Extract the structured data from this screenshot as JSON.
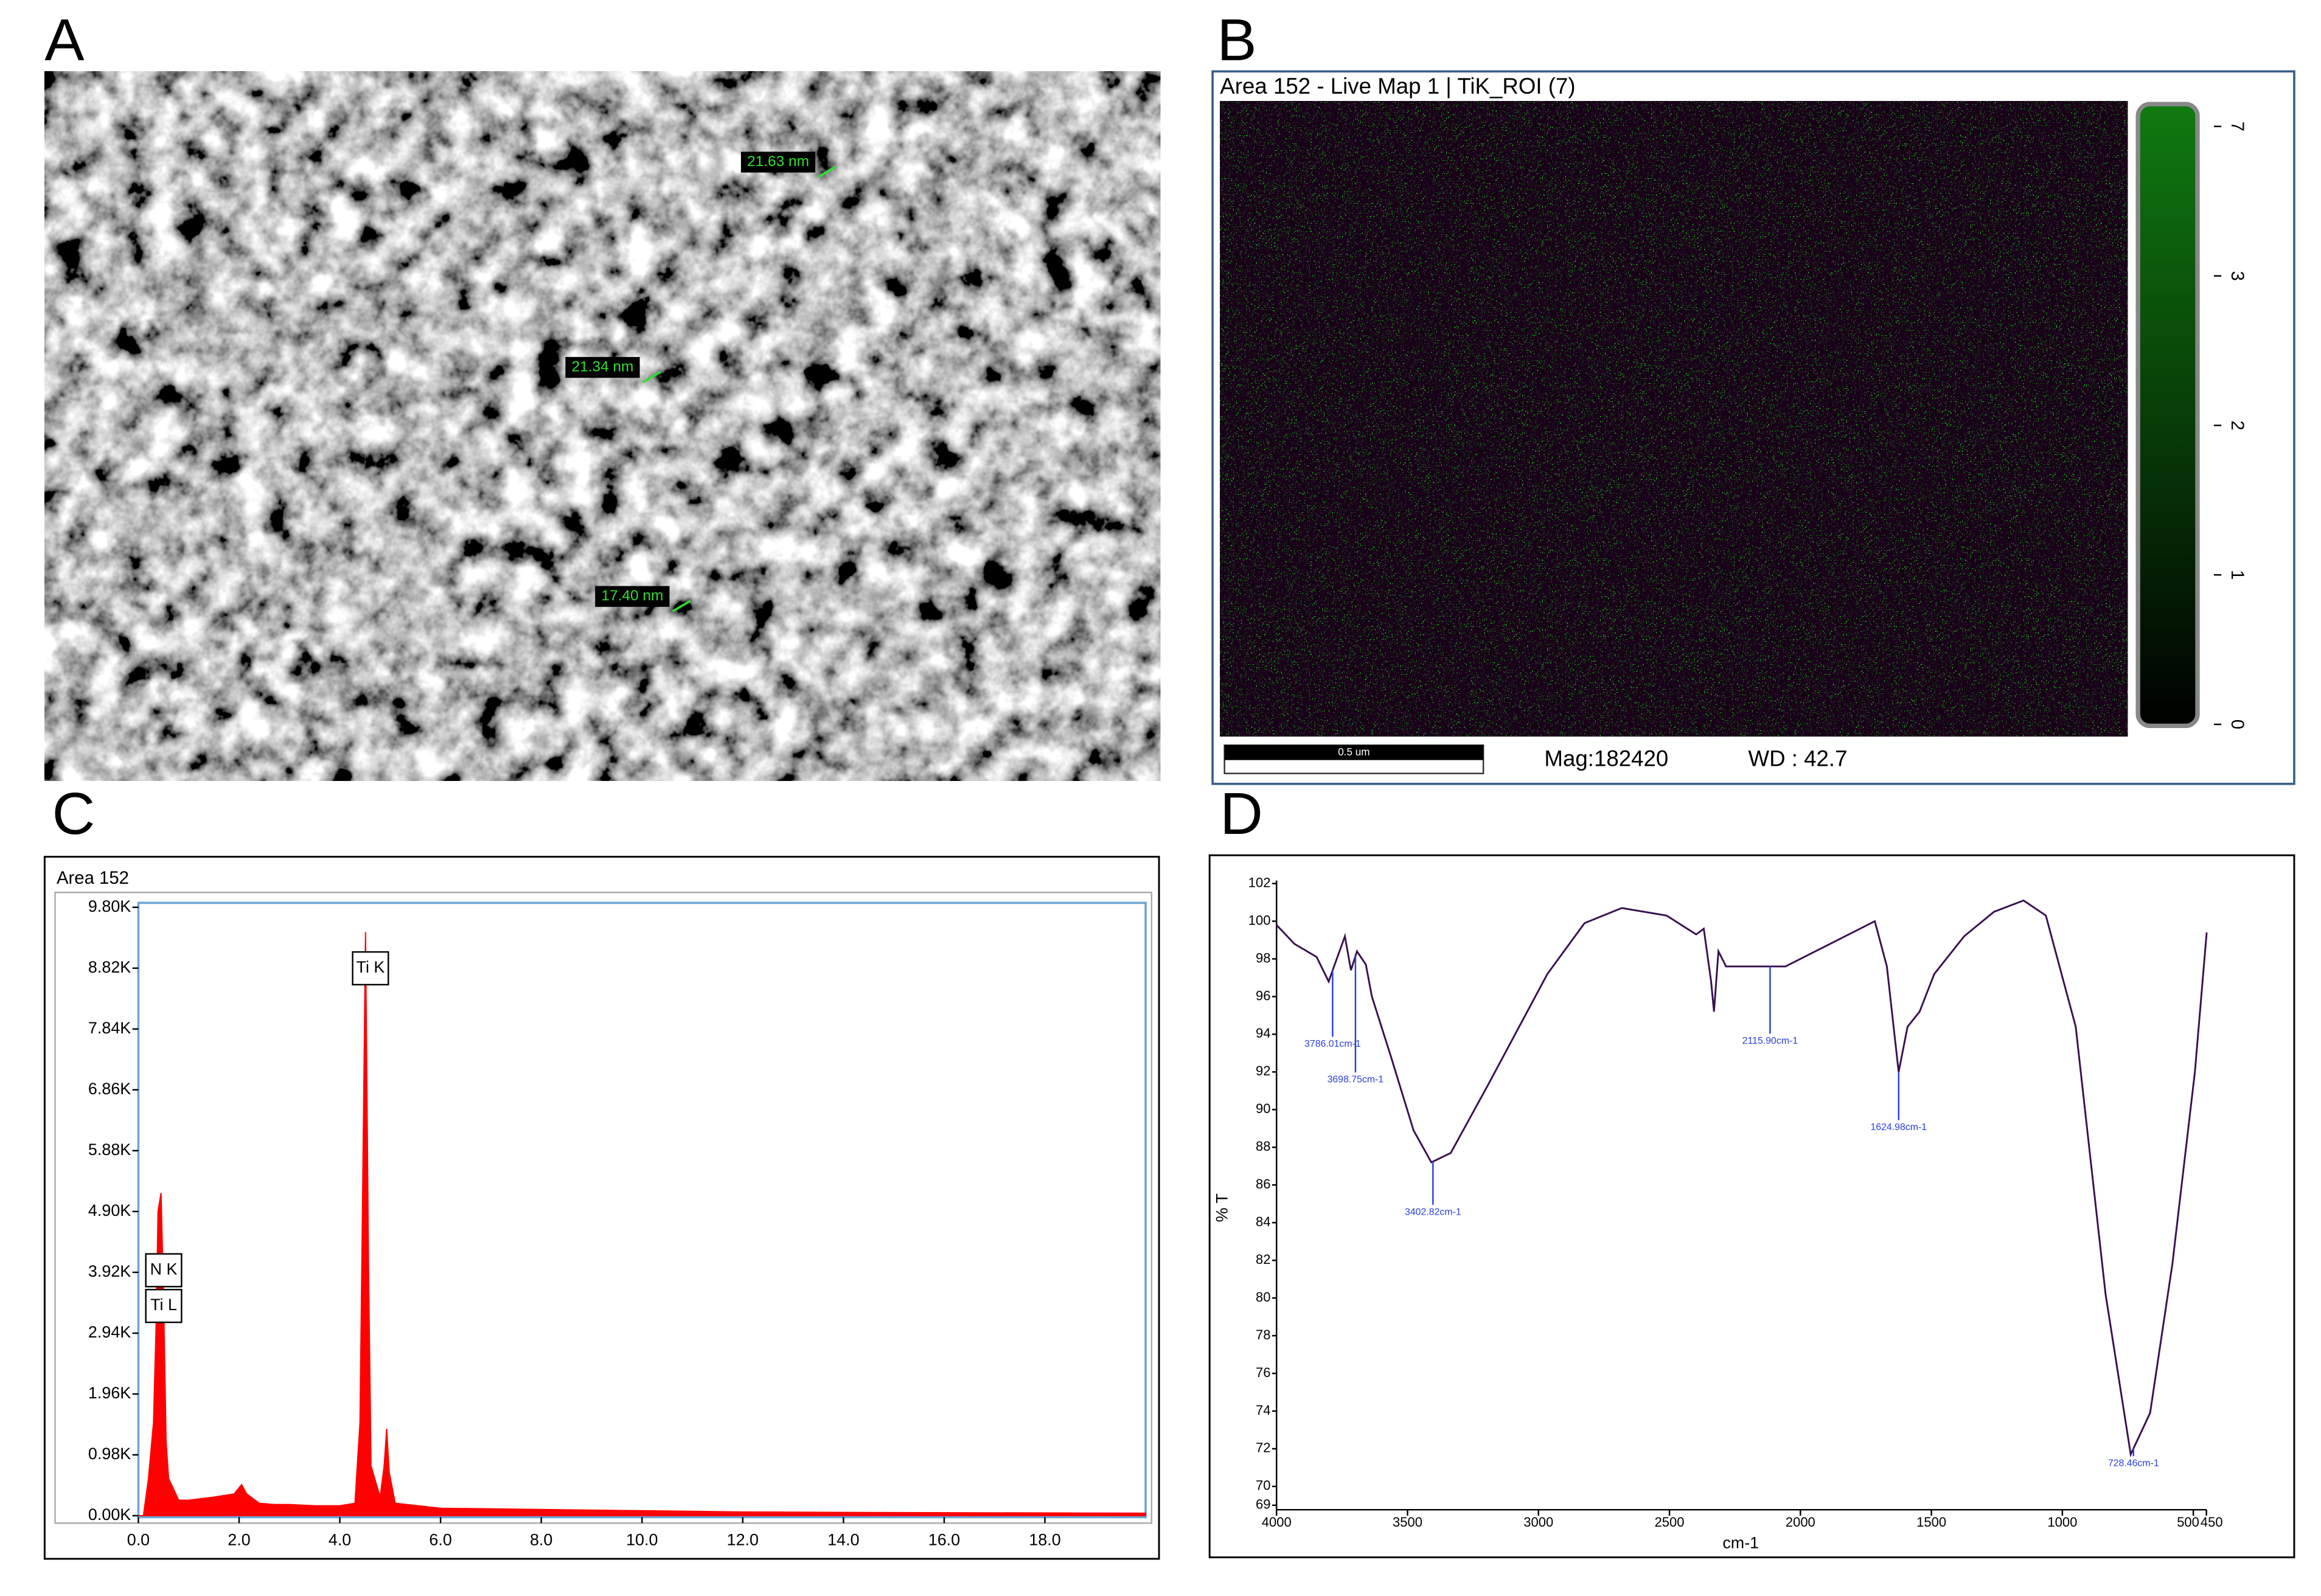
{
  "panel_labels": [
    "A",
    "B",
    "C",
    "D"
  ],
  "sem": {
    "measurements": [
      "21.63 nm",
      "21.34 nm",
      "17.40 nm"
    ]
  },
  "map": {
    "title": "Area 152 - Live Map 1 | TiK_ROI (7)",
    "colorbar_ticks": [
      7,
      3,
      2,
      1,
      0
    ],
    "scale_bar": "0.5 um",
    "magnification": "Mag:182420",
    "working_distance": "WD : 42.7",
    "color": "#0f7a0f"
  },
  "chart_data": [
    {
      "type": "area",
      "title": "Area 152",
      "color": "#ff0000",
      "x": [
        0.0,
        0.1,
        0.2,
        0.3,
        0.35,
        0.39,
        0.45,
        0.5,
        0.55,
        0.6,
        0.8,
        1.0,
        1.5,
        1.9,
        2.05,
        2.15,
        2.4,
        2.7,
        3.0,
        3.5,
        4.0,
        4.3,
        4.4,
        4.45,
        4.51,
        4.57,
        4.62,
        4.8,
        4.88,
        4.93,
        4.98,
        5.1,
        6.0,
        8.0,
        10.0,
        12.0,
        15.0,
        20.0
      ],
      "values": [
        0,
        0,
        600,
        1500,
        3000,
        4900,
        5200,
        3500,
        1200,
        600,
        250,
        250,
        300,
        350,
        500,
        350,
        200,
        180,
        180,
        160,
        160,
        200,
        1500,
        5000,
        9400,
        4000,
        800,
        300,
        800,
        1400,
        700,
        200,
        120,
        100,
        80,
        60,
        50,
        40
      ],
      "xlim": [
        0,
        20
      ],
      "ylim": [
        0,
        9800
      ],
      "xticks": [
        {
          "value": 0,
          "label": "0.0"
        },
        {
          "value": 2,
          "label": "2.0"
        },
        {
          "value": 4,
          "label": "4.0"
        },
        {
          "value": 6,
          "label": "6.0"
        },
        {
          "value": 8,
          "label": "8.0"
        },
        {
          "value": 10,
          "label": "10.0"
        },
        {
          "value": 12,
          "label": "12.0"
        },
        {
          "value": 14,
          "label": "14.0"
        },
        {
          "value": 16,
          "label": "16.0"
        },
        {
          "value": 18,
          "label": "18.0"
        }
      ],
      "yticks": [
        {
          "value": 0,
          "label": "0.00K"
        },
        {
          "value": 980,
          "label": "0.98K"
        },
        {
          "value": 1960,
          "label": "1.96K"
        },
        {
          "value": 2940,
          "label": "2.94K"
        },
        {
          "value": 3920,
          "label": "3.92K"
        },
        {
          "value": 4900,
          "label": "4.90K"
        },
        {
          "value": 5880,
          "label": "5.88K"
        },
        {
          "value": 6860,
          "label": "6.86K"
        },
        {
          "value": 7840,
          "label": "7.84K"
        },
        {
          "value": 8820,
          "label": "8.82K"
        },
        {
          "value": 9800,
          "label": "9.80K"
        }
      ],
      "annotations": [
        "Ti K",
        "N K",
        "Ti L"
      ]
    },
    {
      "type": "line",
      "xlabel": "cm-1",
      "ylabel": "% T",
      "color": "#3a1050",
      "x": [
        4000,
        3932,
        3847,
        3801,
        3778,
        3739,
        3716,
        3693,
        3659,
        3636,
        3563,
        3477,
        3409,
        3335,
        3193,
        2966,
        2824,
        2682,
        2511,
        2398,
        2369,
        2341,
        2330,
        2313,
        2284,
        2199,
        2057,
        1886,
        1716,
        1670,
        1625,
        1591,
        1545,
        1489,
        1375,
        1261,
        1148,
        1063,
        949,
        835,
        739,
        665,
        580,
        494,
        449
      ],
      "values": [
        99.8,
        98.8,
        98.1,
        96.8,
        97.7,
        99.2,
        97.4,
        98.4,
        97.7,
        96.0,
        92.8,
        88.9,
        87.2,
        87.7,
        91.3,
        97.2,
        99.9,
        100.7,
        100.3,
        99.3,
        99.6,
        96.8,
        95.2,
        98.4,
        97.6,
        97.6,
        97.6,
        98.8,
        100.0,
        97.6,
        92.0,
        94.4,
        95.2,
        97.2,
        99.2,
        100.5,
        101.1,
        100.3,
        94.4,
        80.2,
        71.7,
        73.9,
        81.8,
        92.0,
        99.4
      ],
      "xlim": [
        4000,
        450
      ],
      "ylim": [
        69,
        102
      ],
      "xticks": [
        4000,
        3500,
        3000,
        2500,
        2000,
        1500,
        1000,
        500,
        450
      ],
      "yticks": [
        102,
        100,
        98,
        96,
        94,
        92,
        90,
        88,
        86,
        84,
        82,
        80,
        78,
        76,
        74,
        72,
        70,
        69
      ],
      "annotations": [
        {
          "x": 3786.01,
          "label": "3786.01cm-1"
        },
        {
          "x": 3698.75,
          "label": "3698.75cm-1"
        },
        {
          "x": 3402.82,
          "label": "3402.82cm-1"
        },
        {
          "x": 2115.9,
          "label": "2115.90cm-1"
        },
        {
          "x": 1624.98,
          "label": "1624.98cm-1"
        },
        {
          "x": 728.46,
          "label": "728.46cm-1"
        }
      ]
    }
  ]
}
